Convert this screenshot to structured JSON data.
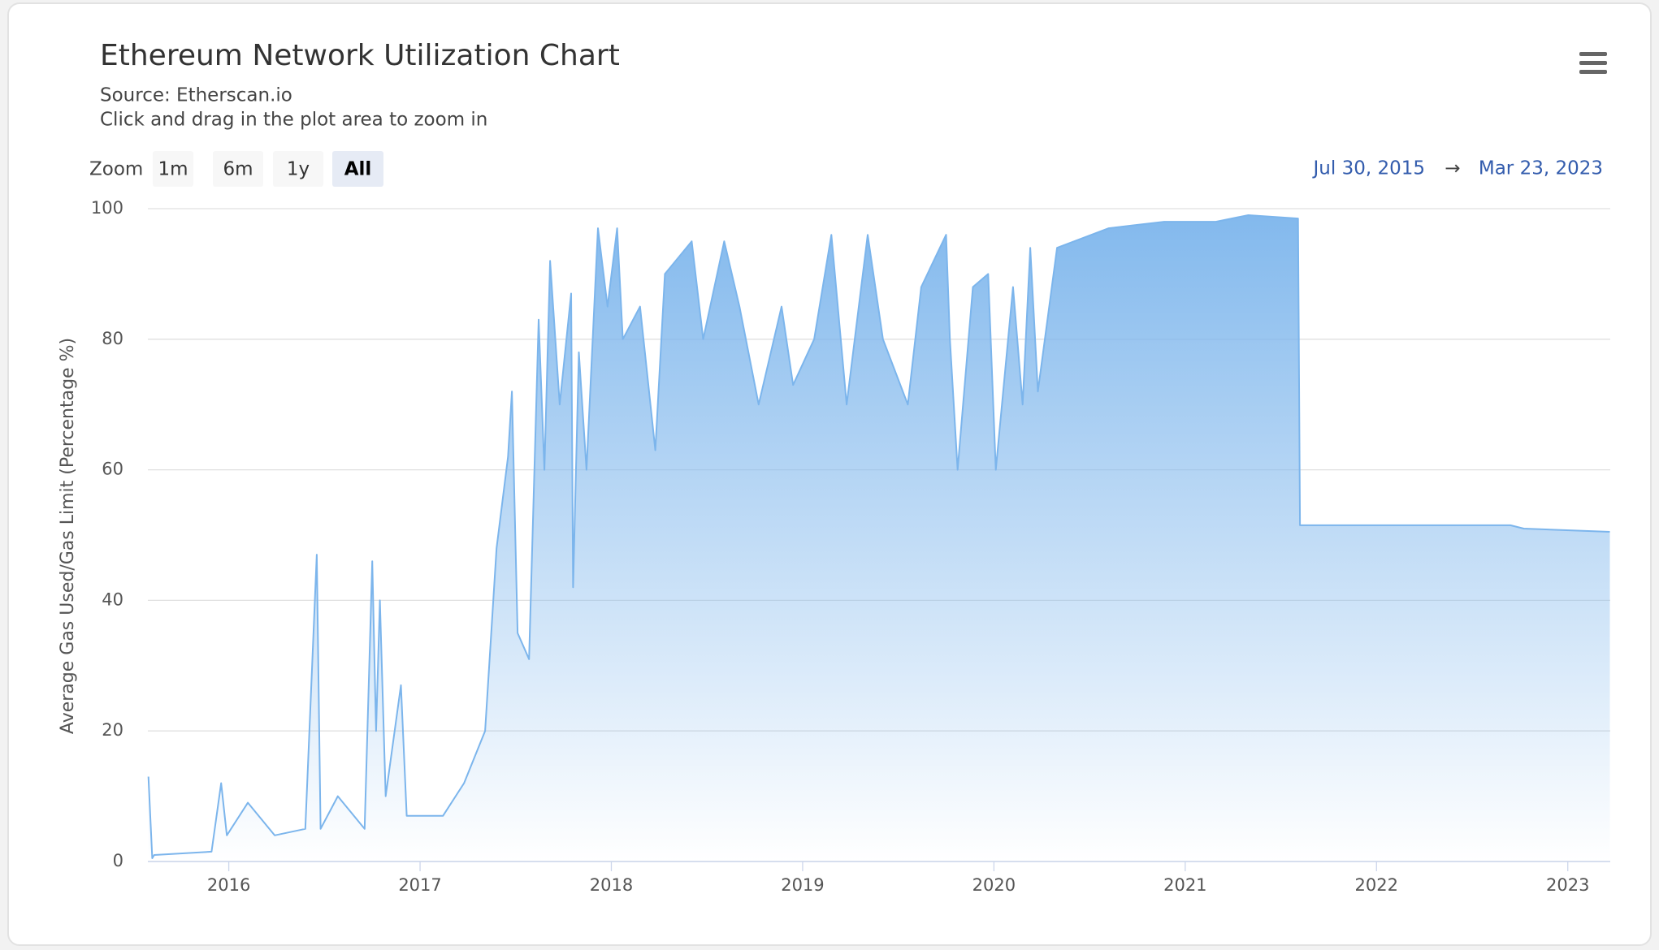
{
  "chart_data": {
    "type": "area",
    "title": "Ethereum Network Utilization Chart",
    "subtitle": [
      "Source: Etherscan.io",
      "Click and drag in the plot area to zoom in"
    ],
    "zoom": {
      "label": "Zoom",
      "buttons": [
        "1m",
        "6m",
        "1y",
        "All"
      ],
      "selected": 3
    },
    "range": {
      "from": "Jul 30, 2015",
      "arrow": "→",
      "to": "Mar 23, 2023"
    },
    "y_label": "Average Gas Used/Gas Limit (Percentage %)",
    "color": "#7cb5ec",
    "grid": true,
    "xlim": [
      2015.577,
      2023.222
    ],
    "xticks": [
      2016,
      2017,
      2018,
      2019,
      2020,
      2021,
      2022,
      2023
    ],
    "ylim": [
      0,
      100
    ],
    "yticks": [
      0,
      20,
      40,
      60,
      80,
      100
    ],
    "x": [
      2015.58,
      2015.6,
      2015.61,
      2015.91,
      2015.96,
      2015.99,
      2016.1,
      2016.24,
      2016.4,
      2016.46,
      2016.48,
      2016.57,
      2016.71,
      2016.75,
      2016.77,
      2016.79,
      2016.82,
      2016.9,
      2016.93,
      2017.12,
      2017.23,
      2017.34,
      2017.4,
      2017.46,
      2017.48,
      2017.51,
      2017.57,
      2017.62,
      2017.65,
      2017.68,
      2017.73,
      2017.79,
      2017.8,
      2017.83,
      2017.87,
      2017.93,
      2017.98,
      2018.03,
      2018.06,
      2018.15,
      2018.23,
      2018.28,
      2018.42,
      2018.48,
      2018.59,
      2018.67,
      2018.77,
      2018.89,
      2018.95,
      2019.06,
      2019.15,
      2019.23,
      2019.34,
      2019.42,
      2019.55,
      2019.62,
      2019.75,
      2019.77,
      2019.81,
      2019.89,
      2019.97,
      2020.01,
      2020.1,
      2020.15,
      2020.19,
      2020.23,
      2020.33,
      2020.6,
      2020.89,
      2021.16,
      2021.33,
      2021.59,
      2021.6,
      2021.99,
      2022.7,
      2022.77,
      2023.22
    ],
    "values": [
      13,
      0.5,
      1,
      1.5,
      12,
      4,
      9,
      4,
      5,
      47,
      5,
      10,
      5,
      46,
      20,
      40,
      10,
      27,
      7,
      7,
      12,
      20,
      48,
      62,
      72,
      35,
      31,
      83,
      60,
      92,
      70,
      87,
      42,
      78,
      60,
      97,
      85,
      97,
      80,
      85,
      63,
      90,
      95,
      80,
      95,
      85,
      70,
      85,
      73,
      80,
      96,
      70,
      96,
      80,
      70,
      88,
      96,
      80,
      60,
      88,
      90,
      60,
      88,
      70,
      94,
      72,
      94,
      97,
      98,
      98,
      99,
      98.5,
      51.5,
      51.5,
      51.5,
      51,
      50.5
    ]
  }
}
